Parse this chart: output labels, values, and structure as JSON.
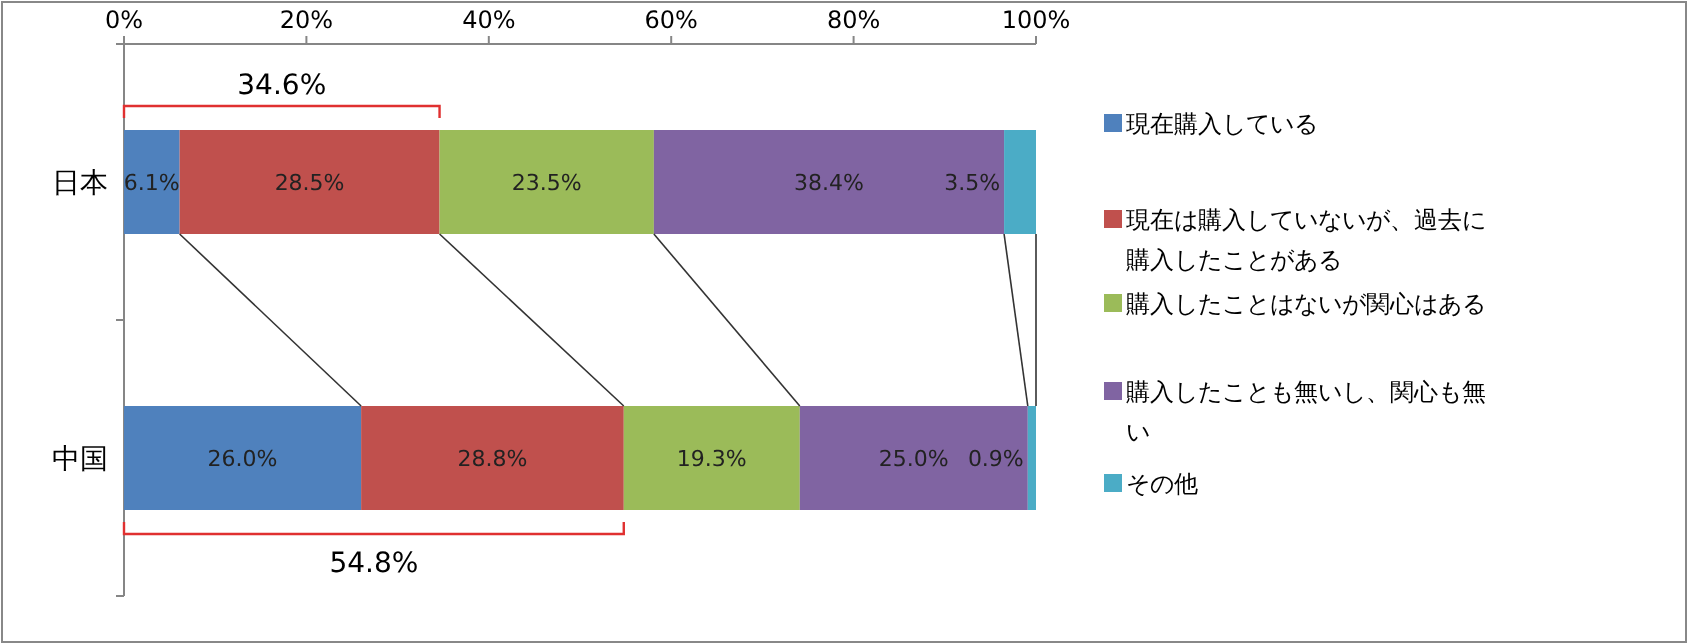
{
  "chart_data": {
    "type": "bar",
    "orientation": "horizontal",
    "stacked": true,
    "categories": [
      "日本",
      "中国"
    ],
    "series": [
      {
        "name": "現在購入している",
        "color": "#4f81bd",
        "values": [
          6.1,
          26.0
        ],
        "value_labels": [
          "6.1%",
          "26.0%"
        ]
      },
      {
        "name": "現在は購入していないが、過去に購入したことがある",
        "color": "#c0504d",
        "values": [
          28.5,
          28.8
        ],
        "value_labels": [
          "28.5%",
          "28.8%"
        ]
      },
      {
        "name": "購入したことはないが関心はある",
        "color": "#9bbb59",
        "values": [
          23.5,
          19.3
        ],
        "value_labels": [
          "23.5%",
          "19.3%"
        ]
      },
      {
        "name": "購入したことも無いし、関心も無い",
        "color": "#8064a2",
        "values": [
          38.4,
          25.0
        ],
        "value_labels": [
          "38.4%",
          "25.0%"
        ]
      },
      {
        "name": "その他",
        "color": "#4bacc6",
        "values": [
          3.5,
          0.9
        ],
        "value_labels": [
          "3.5%",
          "0.9%"
        ]
      }
    ],
    "xlim": [
      0,
      100
    ],
    "xticks": [
      {
        "value": 0,
        "label": "0%"
      },
      {
        "value": 20,
        "label": "20%"
      },
      {
        "value": 40,
        "label": "40%"
      },
      {
        "value": 60,
        "label": "60%"
      },
      {
        "value": 80,
        "label": "80%"
      },
      {
        "value": 100,
        "label": "100%"
      }
    ],
    "legend": "right",
    "grid": false,
    "annotations": [
      "34.6%",
      "54.8%"
    ]
  }
}
